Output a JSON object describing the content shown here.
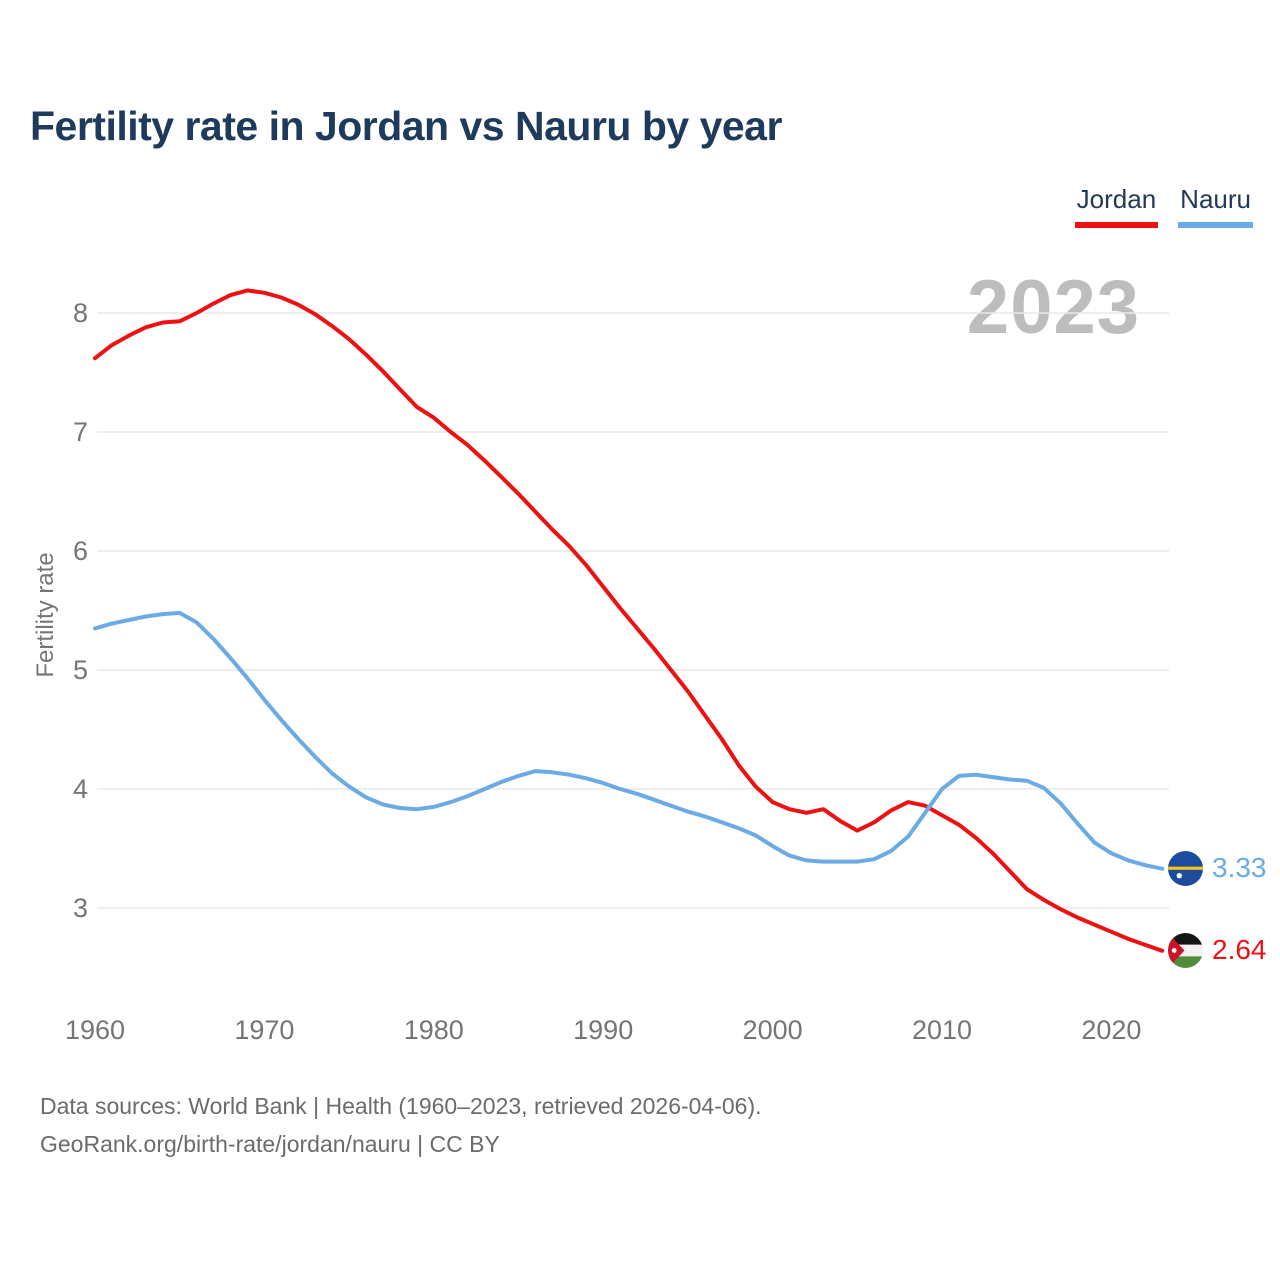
{
  "title": "Fertility rate in Jordan vs Nauru by year",
  "watermark": "2023",
  "legend": [
    {
      "label": "Jordan",
      "color": "#ee1111"
    },
    {
      "label": "Nauru",
      "color": "#6aabe6"
    }
  ],
  "end_labels": [
    {
      "series": "Nauru",
      "value": "3.33",
      "icon": "nauru-flag-icon"
    },
    {
      "series": "Jordan",
      "value": "2.64",
      "icon": "jordan-flag-icon"
    }
  ],
  "footer": {
    "line1": "Data sources: World Bank | Health (1960–2023, retrieved 2026-04-06).",
    "line2": "GeoRank.org/birth-rate/jordan/nauru | CC BY"
  },
  "chart_data": {
    "type": "line",
    "title": "Fertility rate in Jordan vs Nauru by year",
    "xlabel": "",
    "ylabel": "Fertility rate",
    "x_ticks": [
      1960,
      1970,
      1980,
      1990,
      2000,
      2010,
      2020
    ],
    "y_ticks": [
      8,
      7,
      6,
      5,
      4,
      3
    ],
    "xlim": [
      1960,
      2023
    ],
    "ylim": [
      2.5,
      8.4
    ],
    "grid": "horizontal",
    "legend_position": "top-right",
    "x": [
      1960,
      1961,
      1962,
      1963,
      1964,
      1965,
      1966,
      1967,
      1968,
      1969,
      1970,
      1971,
      1972,
      1973,
      1974,
      1975,
      1976,
      1977,
      1978,
      1979,
      1980,
      1981,
      1982,
      1983,
      1984,
      1985,
      1986,
      1987,
      1988,
      1989,
      1990,
      1991,
      1992,
      1993,
      1994,
      1995,
      1996,
      1997,
      1998,
      1999,
      2000,
      2001,
      2002,
      2003,
      2004,
      2005,
      2006,
      2007,
      2008,
      2009,
      2010,
      2011,
      2012,
      2013,
      2014,
      2015,
      2016,
      2017,
      2018,
      2019,
      2020,
      2021,
      2022,
      2023
    ],
    "series": [
      {
        "name": "Jordan",
        "color": "#ee1111",
        "end_value": 2.64,
        "values": [
          7.62,
          7.73,
          7.81,
          7.88,
          7.92,
          7.93,
          8.0,
          8.08,
          8.15,
          8.19,
          8.17,
          8.13,
          8.07,
          7.99,
          7.89,
          7.78,
          7.65,
          7.51,
          7.36,
          7.21,
          7.12,
          7.0,
          6.89,
          6.76,
          6.62,
          6.48,
          6.33,
          6.18,
          6.04,
          5.88,
          5.7,
          5.52,
          5.35,
          5.18,
          5.0,
          4.82,
          4.62,
          4.42,
          4.2,
          4.02,
          3.89,
          3.83,
          3.8,
          3.83,
          3.73,
          3.65,
          3.72,
          3.82,
          3.89,
          3.86,
          3.78,
          3.7,
          3.59,
          3.46,
          3.31,
          3.16,
          3.07,
          2.99,
          2.92,
          2.86,
          2.8,
          2.74,
          2.69,
          2.64
        ]
      },
      {
        "name": "Nauru",
        "color": "#6aabe6",
        "end_value": 3.33,
        "values": [
          5.35,
          5.39,
          5.42,
          5.45,
          5.47,
          5.48,
          5.4,
          5.26,
          5.1,
          4.93,
          4.75,
          4.58,
          4.42,
          4.27,
          4.13,
          4.02,
          3.93,
          3.87,
          3.84,
          3.83,
          3.85,
          3.89,
          3.94,
          4.0,
          4.06,
          4.11,
          4.15,
          4.14,
          4.12,
          4.09,
          4.05,
          4.0,
          3.96,
          3.91,
          3.86,
          3.81,
          3.77,
          3.72,
          3.67,
          3.61,
          3.52,
          3.44,
          3.4,
          3.39,
          3.39,
          3.39,
          3.41,
          3.48,
          3.6,
          3.8,
          4.0,
          4.11,
          4.12,
          4.1,
          4.08,
          4.07,
          4.01,
          3.88,
          3.71,
          3.55,
          3.46,
          3.4,
          3.36,
          3.33
        ]
      }
    ]
  },
  "theme": {
    "title_color": "#1e3a5c",
    "tick_color": "#757575",
    "grid_color": "#e9e9e9",
    "watermark_color": "#bdbdbd",
    "footer_color": "#6b6b6b"
  }
}
